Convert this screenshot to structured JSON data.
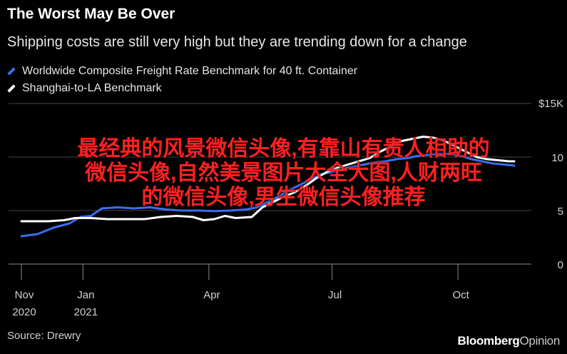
{
  "title": "The Worst May Be Over",
  "subtitle": "Shipping costs are still very high but they are trending down for a change",
  "legend": [
    {
      "label": "Worldwide Composite Freight Rate Benchmark for 40 ft. Container",
      "color": "#3a6df0"
    },
    {
      "label": "Shanghai-to-LA Benchmark",
      "color": "#ffffff"
    }
  ],
  "source": "Source: Drewry",
  "brand": {
    "bold": "Bloomberg",
    "light": "Opinion"
  },
  "overlay_text": [
    "最经典的风景微信头像,有靠山有贵人相助的",
    "微信头像,自然美景图片大全大图,人财两旺",
    "的微信头像,男生微信头像推荐"
  ],
  "chart_data": {
    "type": "line",
    "ylim": [
      0,
      15
    ],
    "y_ticks": [
      {
        "value": 0,
        "label": "0"
      },
      {
        "value": 5,
        "label": "5"
      },
      {
        "value": 10,
        "label": "10"
      },
      {
        "value": 15,
        "label": "$15K"
      }
    ],
    "x_ticks": [
      {
        "t": 0,
        "label": [
          "Nov",
          "2020"
        ]
      },
      {
        "t": 11.5,
        "label": [
          "Jan",
          "2021"
        ]
      },
      {
        "t": 35,
        "label": [
          "Apr",
          ""
        ]
      },
      {
        "t": 58,
        "label": [
          "Jul",
          ""
        ]
      },
      {
        "t": 81.5,
        "label": [
          "Oct",
          ""
        ]
      }
    ],
    "xlim": [
      0,
      94
    ],
    "series": [
      {
        "name": "Worldwide Composite Freight Rate Benchmark for 40 ft. Container",
        "color": "#3a6df0",
        "points": [
          [
            0,
            2.6
          ],
          [
            3,
            2.8
          ],
          [
            6,
            3.4
          ],
          [
            9,
            3.8
          ],
          [
            11,
            4.4
          ],
          [
            13,
            4.5
          ],
          [
            15,
            5.2
          ],
          [
            18,
            5.3
          ],
          [
            21,
            5.2
          ],
          [
            24,
            5.3
          ],
          [
            27,
            5.1
          ],
          [
            30,
            5.0
          ],
          [
            33,
            5.0
          ],
          [
            36,
            4.95
          ],
          [
            39,
            5.0
          ],
          [
            42,
            5.1
          ],
          [
            44,
            5.3
          ],
          [
            46,
            5.8
          ],
          [
            48,
            6.3
          ],
          [
            50,
            6.9
          ],
          [
            52,
            7.4
          ],
          [
            54,
            7.9
          ],
          [
            56,
            8.4
          ],
          [
            58,
            8.6
          ],
          [
            60,
            8.9
          ],
          [
            62,
            9.1
          ],
          [
            64,
            9.3
          ],
          [
            66,
            9.5
          ],
          [
            68,
            9.6
          ],
          [
            70,
            9.8
          ],
          [
            72,
            9.9
          ],
          [
            74,
            10.1
          ],
          [
            76,
            10.2
          ],
          [
            78,
            10.3
          ],
          [
            80,
            10.3
          ],
          [
            82,
            10.1
          ],
          [
            84,
            9.8
          ],
          [
            86,
            9.6
          ],
          [
            88,
            9.4
          ],
          [
            90,
            9.3
          ],
          [
            92,
            9.2
          ]
        ]
      },
      {
        "name": "Shanghai-to-LA Benchmark",
        "color": "#ffffff",
        "points": [
          [
            0,
            4.0
          ],
          [
            5,
            4.0
          ],
          [
            8,
            4.1
          ],
          [
            10,
            4.3
          ],
          [
            13,
            4.3
          ],
          [
            16,
            4.2
          ],
          [
            20,
            4.2
          ],
          [
            23,
            4.2
          ],
          [
            26,
            4.4
          ],
          [
            29,
            4.5
          ],
          [
            32,
            4.4
          ],
          [
            34,
            4.1
          ],
          [
            36,
            4.2
          ],
          [
            38,
            4.5
          ],
          [
            40,
            4.3
          ],
          [
            43,
            4.4
          ],
          [
            45,
            5.3
          ],
          [
            47,
            5.8
          ],
          [
            49,
            6.3
          ],
          [
            51,
            6.7
          ],
          [
            53,
            7.3
          ],
          [
            55,
            8.0
          ],
          [
            57,
            8.6
          ],
          [
            59,
            9.0
          ],
          [
            61,
            9.3
          ],
          [
            63,
            9.6
          ],
          [
            65,
            9.9
          ],
          [
            67,
            10.5
          ],
          [
            69,
            11.0
          ],
          [
            71,
            11.5
          ],
          [
            73,
            11.7
          ],
          [
            75,
            11.9
          ],
          [
            77,
            11.8
          ],
          [
            79,
            11.5
          ],
          [
            81,
            11.0
          ],
          [
            83,
            10.5
          ],
          [
            85,
            10.0
          ],
          [
            87,
            9.8
          ],
          [
            89,
            9.7
          ],
          [
            91,
            9.6
          ],
          [
            92,
            9.6
          ]
        ]
      }
    ]
  }
}
